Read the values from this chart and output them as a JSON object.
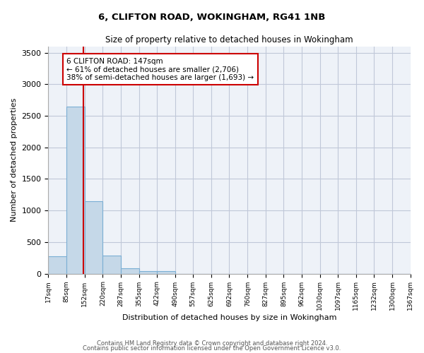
{
  "title_line1": "6, CLIFTON ROAD, WOKINGHAM, RG41 1NB",
  "title_line2": "Size of property relative to detached houses in Wokingham",
  "xlabel": "Distribution of detached houses by size in Wokingham",
  "ylabel": "Number of detached properties",
  "bin_labels": [
    "17sqm",
    "85sqm",
    "152sqm",
    "220sqm",
    "287sqm",
    "355sqm",
    "422sqm",
    "490sqm",
    "557sqm",
    "625sqm",
    "692sqm",
    "760sqm",
    "827sqm",
    "895sqm",
    "962sqm",
    "1030sqm",
    "1097sqm",
    "1165sqm",
    "1232sqm",
    "1300sqm",
    "1367sqm"
  ],
  "bin_edges": [
    17,
    85,
    152,
    220,
    287,
    355,
    422,
    490,
    557,
    625,
    692,
    760,
    827,
    895,
    962,
    1030,
    1097,
    1165,
    1232,
    1300,
    1367
  ],
  "bar_heights": [
    275,
    2650,
    1150,
    285,
    90,
    45,
    35,
    0,
    0,
    0,
    0,
    0,
    0,
    0,
    0,
    0,
    0,
    0,
    0,
    0
  ],
  "bar_color": "#c5d8e8",
  "bar_edge_color": "#7bafd4",
  "vline_x": 147,
  "vline_color": "#cc0000",
  "annotation_text": "6 CLIFTON ROAD: 147sqm\n← 61% of detached houses are smaller (2,706)\n38% of semi-detached houses are larger (1,693) →",
  "annotation_box_color": "#ffffff",
  "annotation_box_edge": "#cc0000",
  "ylim": [
    0,
    3600
  ],
  "yticks": [
    0,
    500,
    1000,
    1500,
    2000,
    2500,
    3000,
    3500
  ],
  "grid_color": "#c0c8d8",
  "bg_color": "#eef2f8",
  "footer_line1": "Contains HM Land Registry data © Crown copyright and database right 2024.",
  "footer_line2": "Contains public sector information licensed under the Open Government Licence v3.0."
}
